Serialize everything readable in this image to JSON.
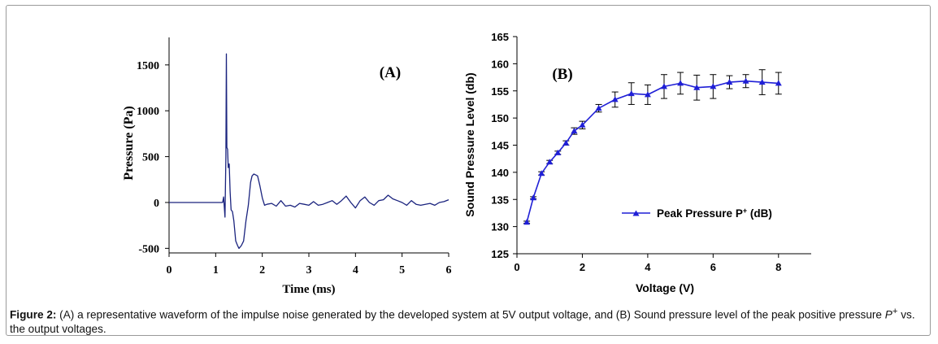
{
  "caption": {
    "label": "Figure 2:",
    "text_a": " (A) a representative waveform of the impulse noise generated by the developed system at 5V output voltage, and (B) Sound pressure level of the peak positive pressure ",
    "symbol": "P",
    "superscript": "+",
    "text_b": " vs. the output voltages."
  },
  "colors": {
    "series_b": "#1f1fd6",
    "waveform": "#1a237e",
    "error_bar": "#000000"
  },
  "chart_data": [
    {
      "type": "line",
      "panel_label": "(A)",
      "title": "",
      "xlabel": "Time (ms)",
      "ylabel": "Pressure (Pa)",
      "xlim": [
        0,
        6
      ],
      "ylim": [
        -550,
        1800
      ],
      "xticks": [
        0,
        1,
        2,
        3,
        4,
        5,
        6
      ],
      "yticks": [
        -500,
        0,
        500,
        1000,
        1500
      ],
      "grid": false,
      "series": [
        {
          "name": "waveform",
          "x": [
            0,
            1.15,
            1.17,
            1.2,
            1.22,
            1.23,
            1.24,
            1.255,
            1.27,
            1.29,
            1.31,
            1.33,
            1.36,
            1.39,
            1.43,
            1.47,
            1.5,
            1.55,
            1.6,
            1.65,
            1.7,
            1.75,
            1.78,
            1.82,
            1.86,
            1.9,
            1.95,
            2.0,
            2.05,
            2.1,
            2.2,
            2.3,
            2.4,
            2.5,
            2.6,
            2.7,
            2.8,
            2.9,
            3.0,
            3.1,
            3.2,
            3.3,
            3.4,
            3.5,
            3.6,
            3.7,
            3.8,
            3.9,
            4.0,
            4.1,
            4.2,
            4.3,
            4.4,
            4.5,
            4.6,
            4.7,
            4.8,
            4.9,
            5.0,
            5.1,
            5.2,
            5.3,
            5.4,
            5.5,
            5.6,
            5.7,
            5.8,
            5.9,
            6.0
          ],
          "y": [
            0,
            0,
            60,
            -160,
            500,
            1620,
            600,
            580,
            380,
            420,
            120,
            -80,
            -100,
            -200,
            -420,
            -470,
            -500,
            -470,
            -420,
            -200,
            -30,
            220,
            290,
            310,
            300,
            290,
            180,
            50,
            -30,
            -20,
            -10,
            -40,
            20,
            -40,
            -30,
            -50,
            -10,
            -20,
            -30,
            10,
            -30,
            -20,
            0,
            20,
            -20,
            20,
            70,
            0,
            -60,
            20,
            60,
            0,
            -30,
            20,
            30,
            80,
            40,
            20,
            0,
            -30,
            20,
            -20,
            -30,
            -20,
            -10,
            -30,
            0,
            10,
            30
          ]
        }
      ]
    },
    {
      "type": "line",
      "panel_label": "(B)",
      "title": "",
      "xlabel": "Voltage (V)",
      "ylabel": "Sound Pressure Level (db)",
      "xlim": [
        0,
        9
      ],
      "ylim": [
        125,
        165
      ],
      "xticks": [
        0,
        2,
        4,
        6,
        8
      ],
      "yticks": [
        125,
        130,
        135,
        140,
        145,
        150,
        155,
        160,
        165
      ],
      "grid": false,
      "legend": {
        "label": "Peak Pressure P",
        "superscript": "+",
        "suffix": " (dB)",
        "placement": "lower-right"
      },
      "series": [
        {
          "name": "Peak Pressure P+ (dB)",
          "marker": "triangle",
          "x": [
            0.3,
            0.5,
            0.75,
            1.0,
            1.25,
            1.5,
            1.75,
            2.0,
            2.5,
            3.0,
            3.5,
            4.0,
            4.5,
            5.0,
            5.5,
            6.0,
            6.5,
            7.0,
            7.5,
            8.0
          ],
          "y": [
            130.8,
            135.3,
            139.8,
            141.9,
            143.6,
            145.4,
            147.6,
            148.7,
            151.8,
            153.4,
            154.5,
            154.3,
            155.8,
            156.4,
            155.6,
            155.8,
            156.6,
            156.8,
            156.6,
            156.4
          ],
          "error": [
            0.2,
            0.2,
            0.3,
            0.3,
            0.3,
            0.4,
            0.6,
            0.7,
            0.7,
            1.4,
            2.0,
            1.8,
            2.2,
            2.0,
            2.3,
            2.2,
            1.2,
            1.2,
            2.3,
            2.0
          ]
        }
      ]
    }
  ]
}
